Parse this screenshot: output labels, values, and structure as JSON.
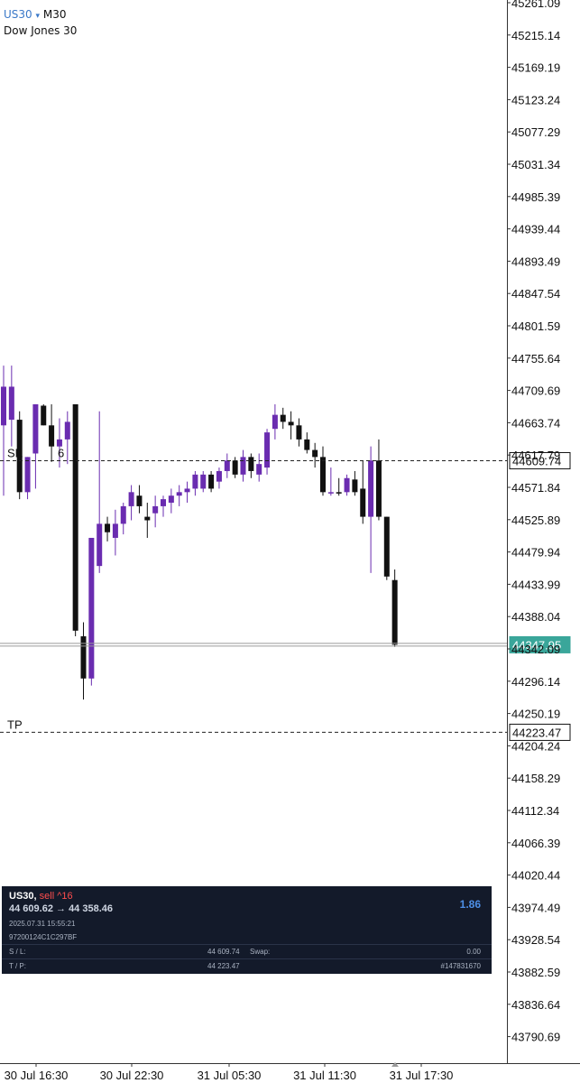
{
  "header": {
    "symbol": "US30",
    "arrow": "▾",
    "timeframe": "M30",
    "description": "Dow Jones 30"
  },
  "order_lines": {
    "sell": {
      "label": "SE",
      "label_suffix": "6",
      "price": "44609.74"
    },
    "tp": {
      "label": "TP",
      "price": "44223.47"
    },
    "current_price": "44347.95",
    "colors": {
      "current_bg": "#3aa69a",
      "dash": "#222222",
      "current_line": "#9a9a9a"
    }
  },
  "position_panel": {
    "symbol": "US30,",
    "side": "sell",
    "volume": "^16",
    "open_price": "44 609.62",
    "arrow": "→",
    "current_price": "44 358.46",
    "time": "2025.07.31 15:55:21",
    "ticket": "97200124C1C297BF",
    "sl_label": "S / L:",
    "sl_value": "44 609.74",
    "swap_label": "Swap:",
    "swap_value": "0.00",
    "tp_label": "T / P:",
    "tp_value": "44 223.47",
    "id_value": "#147831670",
    "profit": "1.86"
  },
  "chart_data": {
    "type": "candlestick",
    "title": "",
    "ylim": [
      43760,
      45270
    ],
    "y_ticks": [
      "45261.09",
      "45215.14",
      "45169.19",
      "45123.24",
      "45077.29",
      "45031.34",
      "44985.39",
      "44939.44",
      "44893.49",
      "44847.54",
      "44801.59",
      "44755.64",
      "44709.69",
      "44663.74",
      "44617.79",
      "44571.84",
      "44525.89",
      "44479.94",
      "44433.99",
      "44388.04",
      "44342.09",
      "44296.14",
      "44250.19",
      "44204.24",
      "44158.29",
      "44112.34",
      "44066.39",
      "44020.44",
      "43974.49",
      "43928.54",
      "43882.59",
      "43836.64",
      "43790.69"
    ],
    "x_labels": [
      "30 Jul 16:30",
      "30 Jul 22:30",
      "31 Jul 05:30",
      "31 Jul 11:30",
      "31 Jul 17:30"
    ],
    "colors": {
      "bull": "#6a2cb0",
      "bear": "#111111"
    },
    "candles": [
      {
        "o": 44660,
        "h": 44745,
        "l": 44560,
        "c": 44715
      },
      {
        "o": 44668,
        "h": 44745,
        "l": 44630,
        "c": 44715
      },
      {
        "o": 44668,
        "h": 44680,
        "l": 44555,
        "c": 44565
      },
      {
        "o": 44565,
        "h": 44615,
        "l": 44555,
        "c": 44615
      },
      {
        "o": 44620,
        "h": 44690,
        "l": 44570,
        "c": 44690
      },
      {
        "o": 44688,
        "h": 44690,
        "l": 44660,
        "c": 44660
      },
      {
        "o": 44660,
        "h": 44690,
        "l": 44608,
        "c": 44630
      },
      {
        "o": 44630,
        "h": 44670,
        "l": 44600,
        "c": 44640
      },
      {
        "o": 44640,
        "h": 44680,
        "l": 44605,
        "c": 44665
      },
      {
        "o": 44690,
        "h": 44690,
        "l": 44360,
        "c": 44368
      },
      {
        "o": 44360,
        "h": 44380,
        "l": 44270,
        "c": 44300
      },
      {
        "o": 44300,
        "h": 44500,
        "l": 44290,
        "c": 44500
      },
      {
        "o": 44460,
        "h": 44680,
        "l": 44450,
        "c": 44520
      },
      {
        "o": 44520,
        "h": 44530,
        "l": 44495,
        "c": 44508
      },
      {
        "o": 44500,
        "h": 44540,
        "l": 44475,
        "c": 44520
      },
      {
        "o": 44520,
        "h": 44550,
        "l": 44505,
        "c": 44545
      },
      {
        "o": 44545,
        "h": 44575,
        "l": 44525,
        "c": 44565
      },
      {
        "o": 44560,
        "h": 44575,
        "l": 44535,
        "c": 44545
      },
      {
        "o": 44530,
        "h": 44550,
        "l": 44500,
        "c": 44525
      },
      {
        "o": 44535,
        "h": 44560,
        "l": 44515,
        "c": 44545
      },
      {
        "o": 44545,
        "h": 44560,
        "l": 44530,
        "c": 44555
      },
      {
        "o": 44550,
        "h": 44570,
        "l": 44535,
        "c": 44560
      },
      {
        "o": 44560,
        "h": 44575,
        "l": 44545,
        "c": 44565
      },
      {
        "o": 44565,
        "h": 44580,
        "l": 44550,
        "c": 44570
      },
      {
        "o": 44570,
        "h": 44595,
        "l": 44560,
        "c": 44590
      },
      {
        "o": 44570,
        "h": 44595,
        "l": 44565,
        "c": 44590
      },
      {
        "o": 44590,
        "h": 44595,
        "l": 44565,
        "c": 44570
      },
      {
        "o": 44580,
        "h": 44600,
        "l": 44570,
        "c": 44595
      },
      {
        "o": 44595,
        "h": 44620,
        "l": 44585,
        "c": 44610
      },
      {
        "o": 44610,
        "h": 44615,
        "l": 44585,
        "c": 44590
      },
      {
        "o": 44590,
        "h": 44625,
        "l": 44580,
        "c": 44615
      },
      {
        "o": 44615,
        "h": 44620,
        "l": 44585,
        "c": 44595
      },
      {
        "o": 44590,
        "h": 44620,
        "l": 44580,
        "c": 44605
      },
      {
        "o": 44600,
        "h": 44655,
        "l": 44590,
        "c": 44650
      },
      {
        "o": 44655,
        "h": 44690,
        "l": 44640,
        "c": 44675
      },
      {
        "o": 44675,
        "h": 44685,
        "l": 44655,
        "c": 44665
      },
      {
        "o": 44665,
        "h": 44680,
        "l": 44640,
        "c": 44660
      },
      {
        "o": 44660,
        "h": 44670,
        "l": 44630,
        "c": 44640
      },
      {
        "o": 44640,
        "h": 44650,
        "l": 44620,
        "c": 44625
      },
      {
        "o": 44625,
        "h": 44635,
        "l": 44600,
        "c": 44615
      },
      {
        "o": 44615,
        "h": 44630,
        "l": 44560,
        "c": 44565
      },
      {
        "o": 44565,
        "h": 44600,
        "l": 44560,
        "c": 44565
      },
      {
        "o": 44565,
        "h": 44585,
        "l": 44560,
        "c": 44563
      },
      {
        "o": 44565,
        "h": 44590,
        "l": 44560,
        "c": 44585
      },
      {
        "o": 44583,
        "h": 44595,
        "l": 44560,
        "c": 44565
      },
      {
        "o": 44570,
        "h": 44610,
        "l": 44520,
        "c": 44530
      },
      {
        "o": 44530,
        "h": 44630,
        "l": 44450,
        "c": 44610
      },
      {
        "o": 44610,
        "h": 44640,
        "l": 44525,
        "c": 44530
      },
      {
        "o": 44530,
        "h": 44530,
        "l": 44440,
        "c": 44445
      },
      {
        "o": 44440,
        "h": 44455,
        "l": 44345,
        "c": 44348
      }
    ]
  }
}
